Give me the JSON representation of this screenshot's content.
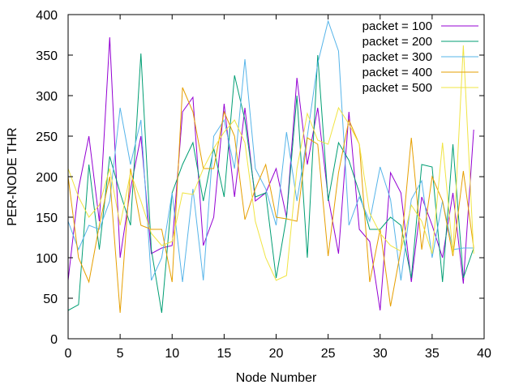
{
  "chart_data": {
    "type": "line",
    "title": "",
    "xlabel": "Node Number",
    "ylabel": "PER-NODE THR",
    "xlim": [
      0,
      40
    ],
    "ylim": [
      0,
      400
    ],
    "xticks": [
      0,
      5,
      10,
      15,
      20,
      25,
      30,
      35,
      40
    ],
    "yticks": [
      0,
      50,
      100,
      150,
      200,
      250,
      300,
      350,
      400
    ],
    "grid": false,
    "legend_position": "top-right",
    "x": [
      0,
      1,
      2,
      3,
      4,
      5,
      6,
      7,
      8,
      9,
      10,
      11,
      12,
      13,
      14,
      15,
      16,
      17,
      18,
      19,
      20,
      21,
      22,
      23,
      24,
      25,
      26,
      27,
      28,
      29,
      30,
      31,
      32,
      33,
      34,
      35,
      36,
      37,
      38,
      39
    ],
    "series": [
      {
        "name": "packet = 100",
        "color": "#9400d3",
        "values": [
          72,
          185,
          250,
          145,
          372,
          100,
          185,
          250,
          105,
          112,
          115,
          280,
          298,
          115,
          150,
          290,
          175,
          285,
          170,
          180,
          210,
          150,
          322,
          215,
          285,
          175,
          105,
          280,
          135,
          120,
          35,
          205,
          180,
          70,
          175,
          140,
          100,
          180,
          68,
          258
        ]
      },
      {
        "name": "packet = 200",
        "color": "#009e73",
        "values": [
          35,
          42,
          215,
          110,
          225,
          180,
          140,
          352,
          110,
          32,
          180,
          215,
          242,
          170,
          235,
          175,
          325,
          270,
          175,
          180,
          75,
          150,
          300,
          100,
          350,
          170,
          242,
          220,
          180,
          135,
          135,
          150,
          140,
          75,
          215,
          212,
          70,
          240,
          75,
          112
        ]
      },
      {
        "name": "packet = 300",
        "color": "#56b4e9",
        "values": [
          145,
          110,
          140,
          135,
          170,
          285,
          215,
          270,
          72,
          100,
          180,
          70,
          185,
          72,
          250,
          270,
          210,
          345,
          210,
          185,
          140,
          255,
          170,
          250,
          340,
          392,
          355,
          140,
          175,
          145,
          212,
          172,
          72,
          172,
          195,
          100,
          170,
          110,
          112,
          112
        ]
      },
      {
        "name": "packet = 400",
        "color": "#e69f00",
        "values": [
          200,
          100,
          70,
          140,
          200,
          32,
          210,
          140,
          135,
          135,
          70,
          310,
          280,
          210,
          210,
          280,
          250,
          147,
          185,
          215,
          150,
          148,
          145,
          248,
          240,
          102,
          205,
          270,
          240,
          70,
          135,
          40,
          110,
          248,
          110,
          200,
          170,
          102,
          207,
          112
        ]
      },
      {
        "name": "packet = 500",
        "color": "#f0e442",
        "values": [
          210,
          175,
          150,
          165,
          210,
          140,
          205,
          170,
          130,
          115,
          120,
          180,
          178,
          210,
          235,
          255,
          270,
          242,
          145,
          100,
          72,
          78,
          210,
          278,
          245,
          240,
          285,
          265,
          240,
          155,
          130,
          115,
          108,
          165,
          145,
          105,
          242,
          105,
          362,
          105
        ]
      }
    ]
  }
}
